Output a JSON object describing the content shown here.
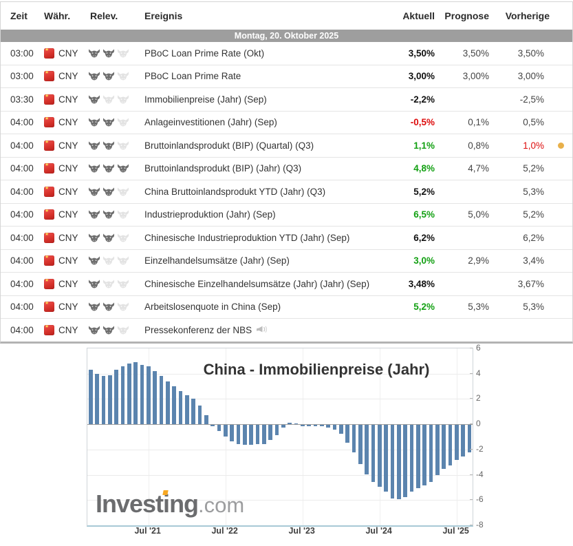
{
  "table": {
    "columns": {
      "time": "Zeit",
      "currency": "Währ.",
      "relevance": "Relev.",
      "event": "Ereignis",
      "actual": "Aktuell",
      "forecast": "Prognose",
      "previous": "Vorherige"
    },
    "date_header": "Montag, 20. Oktober 2025",
    "rows": [
      {
        "time": "03:00",
        "currency": "CNY",
        "bulls": 2,
        "event": "PBoC Loan Prime Rate (Okt)",
        "actual": "3,50%",
        "actual_style": "bold",
        "forecast": "3,50%",
        "previous": "3,50%",
        "marker_dot": false,
        "speaker": false
      },
      {
        "time": "03:00",
        "currency": "CNY",
        "bulls": 2,
        "event": "PBoC Loan Prime Rate",
        "actual": "3,00%",
        "actual_style": "bold",
        "forecast": "3,00%",
        "previous": "3,00%",
        "marker_dot": false,
        "speaker": false
      },
      {
        "time": "03:30",
        "currency": "CNY",
        "bulls": 1,
        "event": "Immobilienpreise (Jahr) (Sep)",
        "actual": "-2,2%",
        "actual_style": "bold",
        "forecast": "",
        "previous": "-2,5%",
        "marker_dot": false,
        "speaker": false
      },
      {
        "time": "04:00",
        "currency": "CNY",
        "bulls": 2,
        "event": "Anlageinvestitionen (Jahr) (Sep)",
        "actual": "-0,5%",
        "actual_style": "red",
        "forecast": "0,1%",
        "previous": "0,5%",
        "marker_dot": false,
        "speaker": false
      },
      {
        "time": "04:00",
        "currency": "CNY",
        "bulls": 2,
        "event": "Bruttoinlandsprodukt (BIP) (Quartal) (Q3)",
        "actual": "1,1%",
        "actual_style": "green",
        "forecast": "0,8%",
        "previous": "1,0%",
        "previous_style": "red",
        "marker_dot": true,
        "speaker": false
      },
      {
        "time": "04:00",
        "currency": "CNY",
        "bulls": 3,
        "event": "Bruttoinlandsprodukt (BIP) (Jahr) (Q3)",
        "actual": "4,8%",
        "actual_style": "green",
        "forecast": "4,7%",
        "previous": "5,2%",
        "marker_dot": false,
        "speaker": false
      },
      {
        "time": "04:00",
        "currency": "CNY",
        "bulls": 2,
        "event": "China Bruttoinlandsprodukt YTD (Jahr) (Q3)",
        "actual": "5,2%",
        "actual_style": "bold",
        "forecast": "",
        "previous": "5,3%",
        "marker_dot": false,
        "speaker": false
      },
      {
        "time": "04:00",
        "currency": "CNY",
        "bulls": 2,
        "event": "Industrieproduktion (Jahr) (Sep)",
        "actual": "6,5%",
        "actual_style": "green",
        "forecast": "5,0%",
        "previous": "5,2%",
        "marker_dot": false,
        "speaker": false
      },
      {
        "time": "04:00",
        "currency": "CNY",
        "bulls": 2,
        "event": "Chinesische Industrieproduktion YTD (Jahr) (Sep)",
        "actual": "6,2%",
        "actual_style": "bold",
        "forecast": "",
        "previous": "6,2%",
        "marker_dot": false,
        "speaker": false
      },
      {
        "time": "04:00",
        "currency": "CNY",
        "bulls": 1,
        "event": "Einzelhandelsumsätze (Jahr) (Sep)",
        "actual": "3,0%",
        "actual_style": "green",
        "forecast": "2,9%",
        "previous": "3,4%",
        "marker_dot": false,
        "speaker": false
      },
      {
        "time": "04:00",
        "currency": "CNY",
        "bulls": 1,
        "event": "Chinesische Einzelhandelsumsätze (Jahr) (Jahr) (Sep)",
        "actual": "3,48%",
        "actual_style": "bold",
        "forecast": "",
        "previous": "3,67%",
        "marker_dot": false,
        "speaker": false
      },
      {
        "time": "04:00",
        "currency": "CNY",
        "bulls": 2,
        "event": "Arbeitslosenquote in China (Sep)",
        "actual": "5,2%",
        "actual_style": "green",
        "forecast": "5,3%",
        "previous": "5,3%",
        "marker_dot": false,
        "speaker": false
      },
      {
        "time": "04:00",
        "currency": "CNY",
        "bulls": 2,
        "event": "Pressekonferenz der NBS",
        "actual": "",
        "actual_style": "bold",
        "forecast": "",
        "previous": "",
        "marker_dot": false,
        "speaker": true
      }
    ],
    "colors": {
      "bold": "#111111",
      "red": "#dd0c0c",
      "green": "#12a012",
      "neutral": "#444444",
      "marker_dot": "#e8b04a",
      "date_band_bg": "#9e9e9e"
    }
  },
  "chart_data": {
    "type": "bar",
    "title": "China - Immobilienpreise (Jahr)",
    "series_name": "Immobilienpreise (Jahr) %",
    "start_month": "2020-10",
    "end_month": "2025-09",
    "values": [
      4.3,
      4.0,
      3.8,
      3.9,
      4.3,
      4.6,
      4.8,
      4.9,
      4.7,
      4.6,
      4.2,
      3.8,
      3.4,
      3.0,
      2.6,
      2.3,
      2.0,
      1.5,
      0.7,
      -0.1,
      -0.5,
      -0.9,
      -1.3,
      -1.5,
      -1.6,
      -1.6,
      -1.5,
      -1.5,
      -1.2,
      -0.8,
      -0.2,
      0.1,
      0.0,
      -0.1,
      -0.1,
      -0.1,
      -0.1,
      -0.2,
      -0.4,
      -0.7,
      -1.4,
      -2.2,
      -3.1,
      -3.9,
      -4.5,
      -4.9,
      -5.3,
      -5.8,
      -5.9,
      -5.7,
      -5.3,
      -5.0,
      -4.8,
      -4.5,
      -4.0,
      -3.5,
      -3.2,
      -2.8,
      -2.5,
      -2.2
    ],
    "ylim": [
      -8,
      6
    ],
    "yticks": [
      6,
      4,
      2,
      0,
      -2,
      -4,
      -6,
      -8
    ],
    "xticks": [
      {
        "label": "Jul '21",
        "index": 9
      },
      {
        "label": "Jul '22",
        "index": 21
      },
      {
        "label": "Jul '23",
        "index": 33
      },
      {
        "label": "Jul '24",
        "index": 45
      },
      {
        "label": "Jul '25",
        "index": 57
      }
    ],
    "grid": true,
    "bar_color": "#5b84ae",
    "legend_position": "none"
  },
  "brand": {
    "pre": "Invest",
    "accent_i": "i",
    "post": "ng",
    "tld": ".com"
  }
}
